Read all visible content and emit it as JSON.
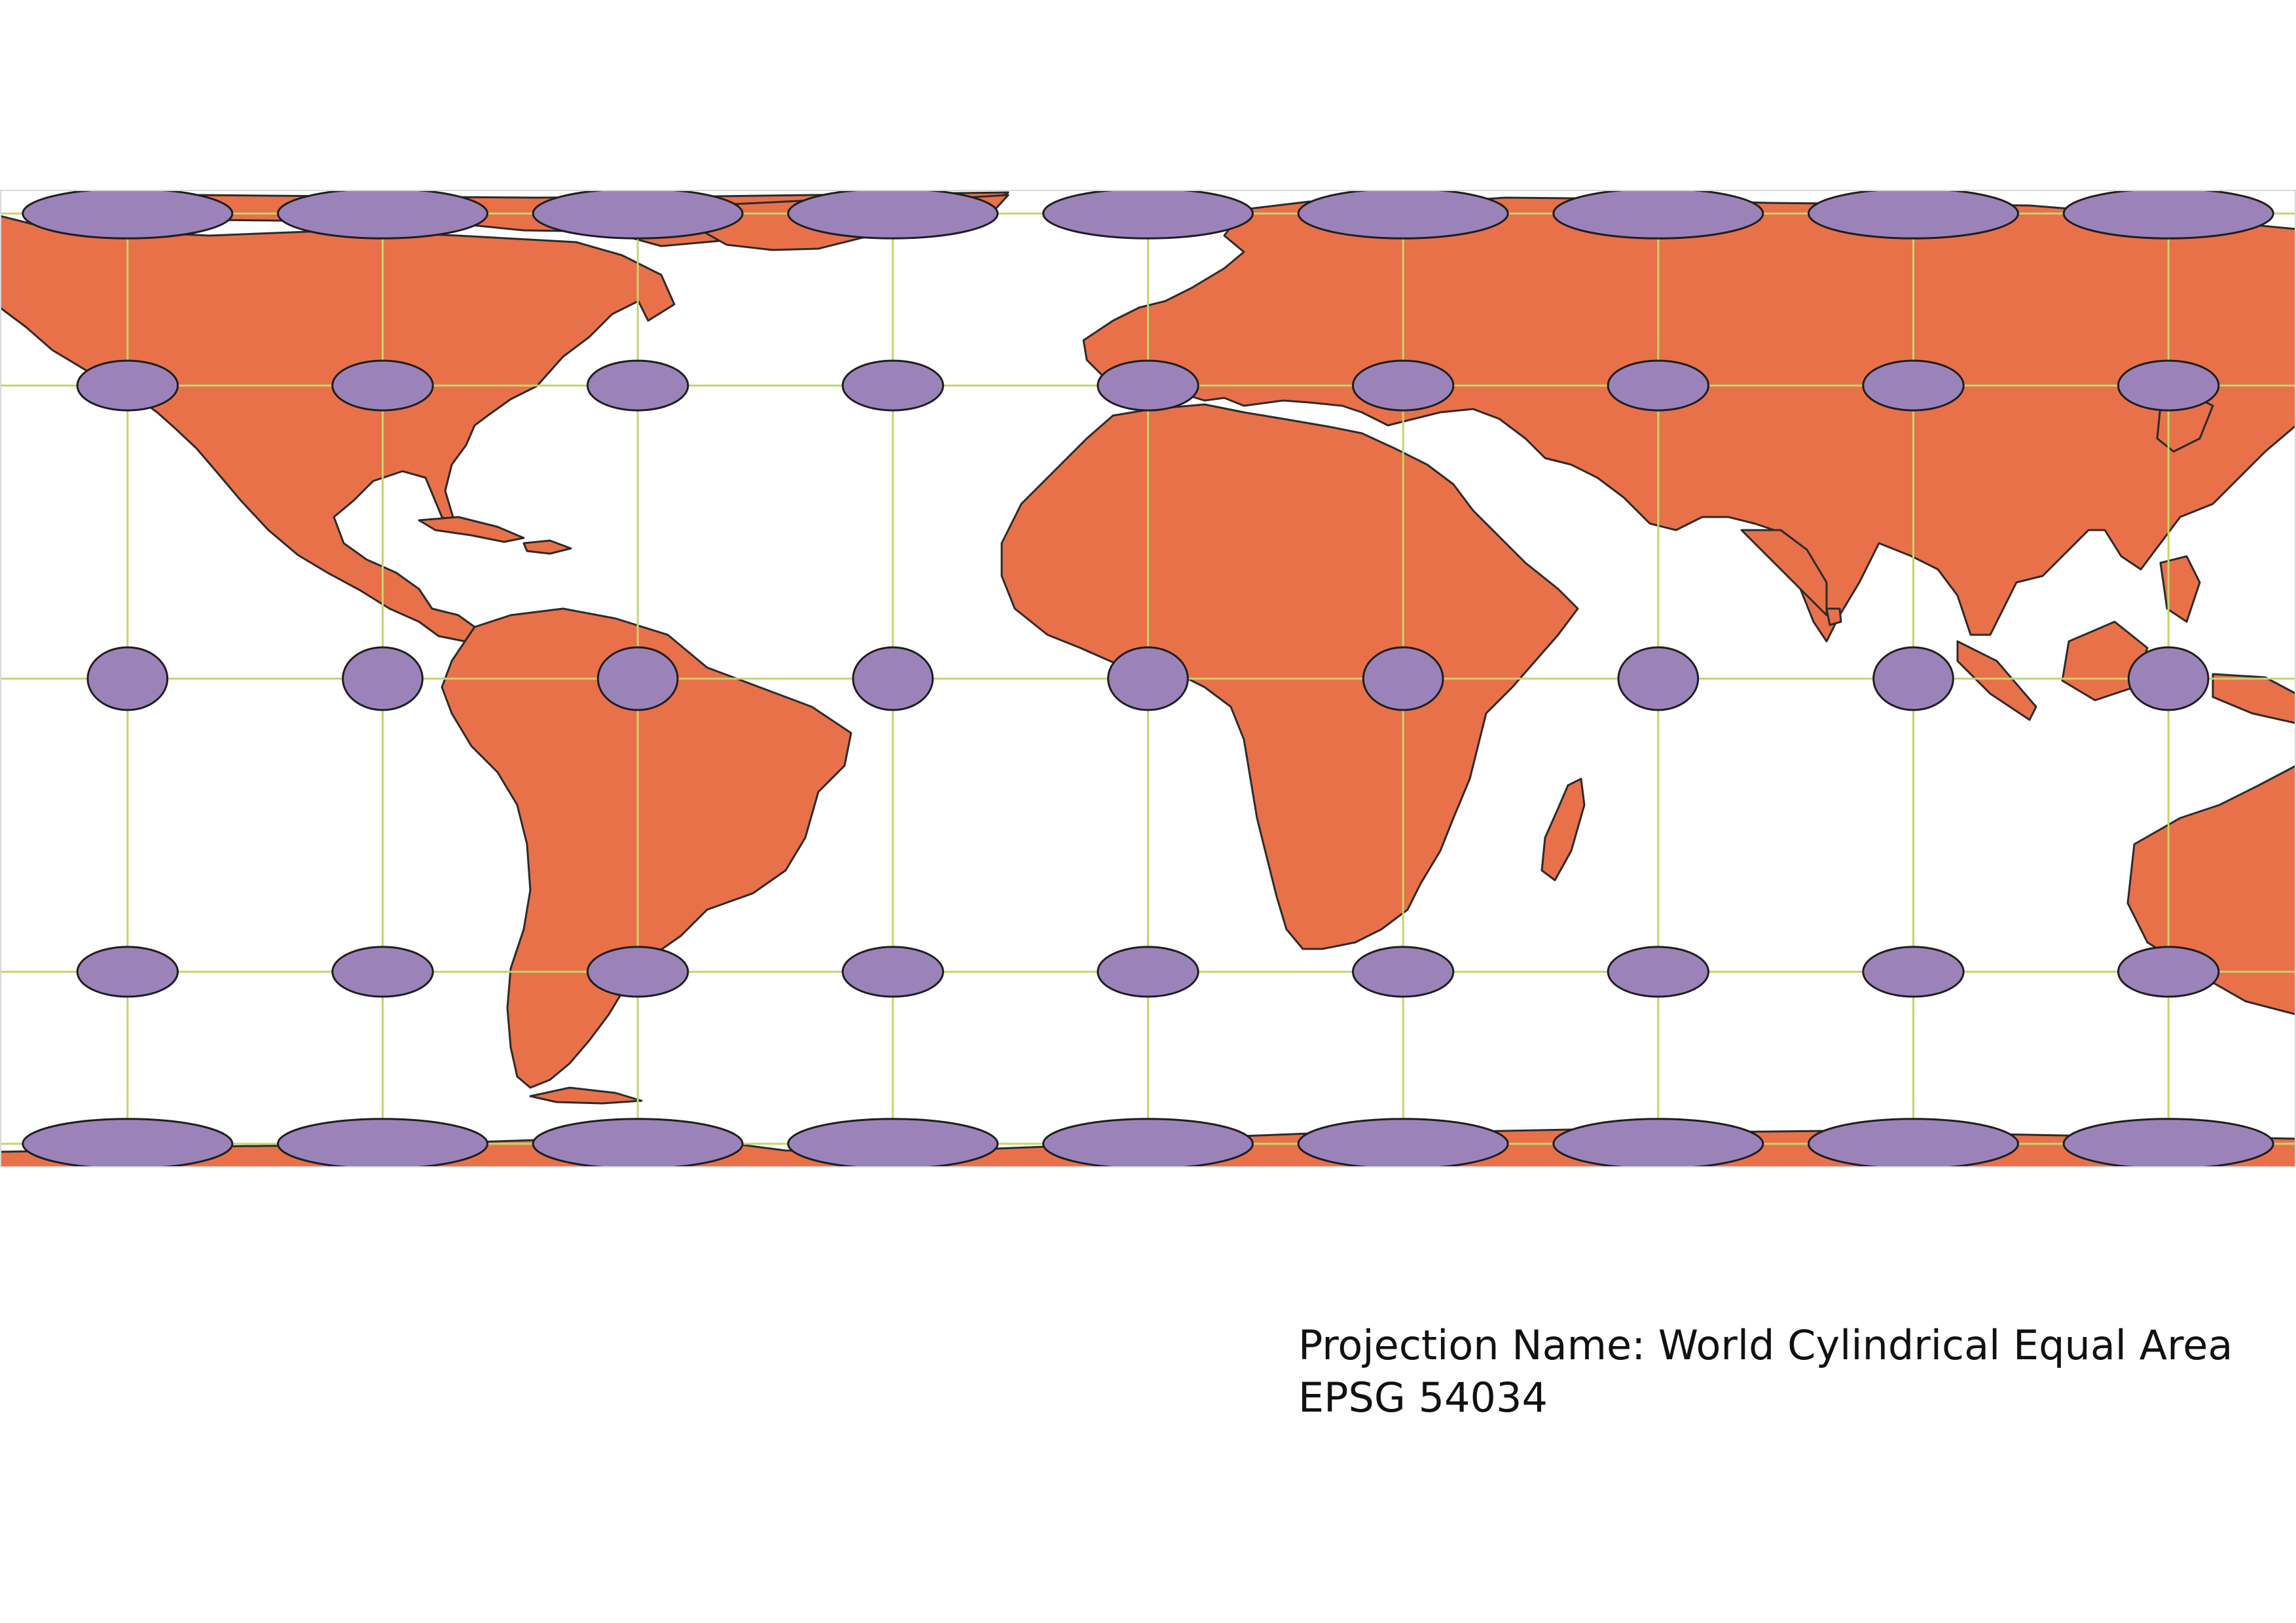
{
  "map": {
    "projection_name_line": "Projection Name: World Cylindrical Equal Area",
    "epsg_line": "EPSG 54034",
    "colors": {
      "land": "#e8714a",
      "ocean": "#ffffff",
      "border": "#2b2b2b",
      "graticule": "#c2d66b",
      "indicatrix_fill": "#9b83ba",
      "indicatrix_stroke": "#1e1e1e"
    },
    "graticule": {
      "longitudes_deg": [
        -160,
        -120,
        -80,
        -40,
        0,
        40,
        80,
        120,
        160
      ],
      "latitudes_deg": [
        -75,
        -37.5,
        0,
        37.5,
        75
      ]
    },
    "tissot_indicatrices": {
      "centers_lon_deg": [
        -160,
        -120,
        -80,
        -40,
        0,
        40,
        80,
        120,
        160
      ],
      "centers_lat_deg": [
        75,
        37.5,
        0,
        -37.5,
        -75
      ],
      "radius_deg": 7.5
    }
  }
}
